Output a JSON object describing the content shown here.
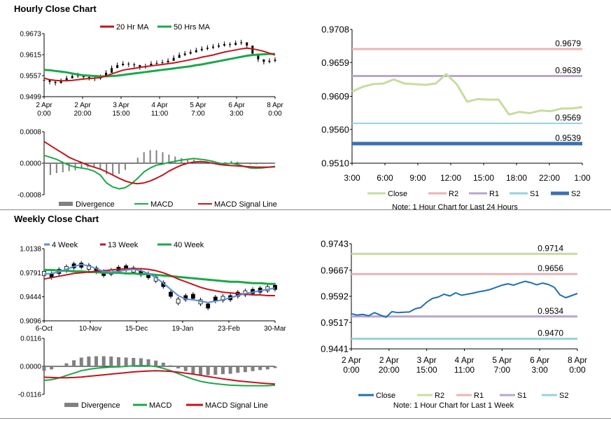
{
  "sections": {
    "hourly_title": "Hourly Close Chart",
    "weekly_title": "Weekly Close Chart"
  },
  "colors": {
    "ma20": "#c0161c",
    "ma50": "#1aa84a",
    "ma4": "#5b8ed6",
    "close_hourly": "#c8dc9e",
    "close_weekly": "#1f6fb2",
    "r2_hourly": "#e9b4b4",
    "r1_hourly": "#b9a5d0",
    "s1_hourly": "#97d1df",
    "s2_hourly": "#3e6faf",
    "r2_weekly": "#c8dc9e",
    "r1_weekly": "#e9b4b4",
    "s1_weekly": "#b9a5d0",
    "s2_weekly": "#97d1df",
    "divergence": "#808080"
  },
  "chart_data": [
    {
      "id": "hourly_price",
      "type": "line",
      "title": "",
      "legend": [
        "20 Hr MA",
        "50 Hrs MA"
      ],
      "yticks": [
        "0.9673",
        "0.9615",
        "0.9557",
        "0.9499"
      ],
      "ylim": [
        0.9499,
        0.9673
      ],
      "xticks": [
        [
          "2 Apr",
          "0:00"
        ],
        [
          "2 Apr",
          "20:00"
        ],
        [
          "3 Apr",
          "15:00"
        ],
        [
          "4 Apr",
          "11:00"
        ],
        [
          "5 Apr",
          "7:00"
        ],
        [
          "6 Apr",
          "3:00"
        ],
        [
          "8 Apr",
          "0:00"
        ]
      ],
      "series": [
        {
          "name": "Price",
          "values": [
            0.9545,
            0.954,
            0.9537,
            0.9542,
            0.955,
            0.9556,
            0.9558,
            0.9553,
            0.9551,
            0.9549,
            0.9553,
            0.9565,
            0.9578,
            0.9586,
            0.959,
            0.9588,
            0.9586,
            0.958,
            0.9583,
            0.959,
            0.9592,
            0.9594,
            0.9598,
            0.9606,
            0.9614,
            0.9618,
            0.9622,
            0.9627,
            0.9631,
            0.9634,
            0.9637,
            0.964,
            0.9644,
            0.9642,
            0.9647,
            0.9649,
            0.964,
            0.9618,
            0.9602,
            0.9595,
            0.9598,
            0.9601
          ]
        },
        {
          "name": "20 Hr MA",
          "values": [
            0.955,
            0.9546,
            0.9544,
            0.9543,
            0.9543,
            0.9544,
            0.9546,
            0.9548,
            0.9549,
            0.955,
            0.9552,
            0.9556,
            0.9562,
            0.9567,
            0.9572,
            0.9575,
            0.9577,
            0.958,
            0.9582,
            0.9584,
            0.9586,
            0.9588,
            0.959,
            0.9592,
            0.9595,
            0.9598,
            0.9601,
            0.9604,
            0.9608,
            0.9611,
            0.9614,
            0.9618,
            0.9622,
            0.9625,
            0.9628,
            0.9631,
            0.9633,
            0.9631,
            0.9628,
            0.9624,
            0.9619,
            0.9614
          ]
        },
        {
          "name": "50 Hrs MA",
          "values": [
            0.9573,
            0.9572,
            0.957,
            0.9568,
            0.9566,
            0.9563,
            0.956,
            0.9558,
            0.9557,
            0.9556,
            0.9555,
            0.9555,
            0.9556,
            0.9557,
            0.9559,
            0.9561,
            0.9563,
            0.9565,
            0.9567,
            0.9569,
            0.9571,
            0.9573,
            0.9575,
            0.9577,
            0.9579,
            0.9581,
            0.9583,
            0.9586,
            0.9588,
            0.9591,
            0.9594,
            0.9597,
            0.96,
            0.9603,
            0.9606,
            0.9609,
            0.9612,
            0.9614,
            0.9615,
            0.9616,
            0.9617,
            0.9617
          ]
        }
      ]
    },
    {
      "id": "hourly_macd",
      "type": "line",
      "legend": [
        "Divergence",
        "MACD",
        "MACD Signal Line"
      ],
      "yticks": [
        "0.0008",
        "0.0000",
        "-0.0008"
      ],
      "ylim": [
        -0.0008,
        0.0008
      ],
      "series": [
        {
          "name": "MACD",
          "values": [
            0.0002,
            0.00015,
            0.0001,
            2e-05,
            -5e-05,
            -0.0001,
            -0.00012,
            -0.00015,
            -0.0002,
            -0.0003,
            -0.0005,
            -0.0006,
            -0.00065,
            -0.00062,
            -0.00052,
            -0.00038,
            -0.00022,
            -0.00012,
            -5e-05,
            -2e-05,
            2e-05,
            5e-05,
            8e-05,
            0.0001,
            0.00012,
            0.0001,
            8e-05,
            5e-05,
            0.0,
            -2e-05,
            0.0,
            -3e-05,
            -8e-05,
            -0.00012,
            -0.00013,
            -0.00012,
            -0.0001,
            -8e-05
          ]
        },
        {
          "name": "MACD Signal Line",
          "values": [
            0.00055,
            0.00045,
            0.00035,
            0.00025,
            0.00015,
            8e-05,
            2e-05,
            -5e-05,
            -0.0001,
            -0.00015,
            -0.00022,
            -0.0003,
            -0.00038,
            -0.00045,
            -0.0005,
            -0.00052,
            -0.0005,
            -0.00045,
            -0.00038,
            -0.0003,
            -0.0002,
            -0.00012,
            -5e-05,
            0.0,
            3e-05,
            4e-05,
            3e-05,
            0.0,
            -3e-05,
            -5e-05,
            -6e-05,
            -7e-05,
            -8e-05,
            -9e-05,
            -0.0001,
            -0.0001,
            -0.0001,
            -9e-05
          ]
        }
      ]
    },
    {
      "id": "hourly_levels",
      "type": "line",
      "yticks": [
        "0.9708",
        "0.9659",
        "0.9609",
        "0.9560",
        "0.9510"
      ],
      "ylim": [
        0.951,
        0.9708
      ],
      "xticks": [
        "3:00",
        "6:00",
        "9:00",
        "12:00",
        "15:00",
        "18:00",
        "22:00",
        "1:00"
      ],
      "legend": [
        "Close",
        "R2",
        "R1",
        "S1",
        "S2"
      ],
      "note": "Note: 1 Hour Chart for Last 24 Hours",
      "levels": [
        {
          "name": "R2",
          "value": 0.9679,
          "label": "0.9679"
        },
        {
          "name": "R1",
          "value": 0.9639,
          "label": "0.9639"
        },
        {
          "name": "S1",
          "value": 0.9569,
          "label": "0.9569"
        },
        {
          "name": "S2",
          "value": 0.9539,
          "label": "0.9539"
        }
      ],
      "series": [
        {
          "name": "Close",
          "values": [
            0.9616,
            0.9623,
            0.9627,
            0.9628,
            0.9634,
            0.9628,
            0.9627,
            0.9626,
            0.9628,
            0.9642,
            0.9627,
            0.9601,
            0.9605,
            0.9604,
            0.9604,
            0.9582,
            0.9586,
            0.9584,
            0.9588,
            0.9587,
            0.9591,
            0.9591,
            0.9593
          ]
        }
      ]
    },
    {
      "id": "weekly_price",
      "type": "line",
      "legend": [
        "4 Week",
        "13 Week",
        "40 Week"
      ],
      "yticks": [
        "1.0138",
        "0.9791",
        "0.9444",
        "0.9096"
      ],
      "ylim": [
        0.9096,
        1.0138
      ],
      "xticks": [
        "6-Oct",
        "10-Nov",
        "15-Dec",
        "19-Jan",
        "23-Feb",
        "30-Mar"
      ],
      "series": [
        {
          "name": "Price",
          "values": [
            0.978,
            0.975,
            0.981,
            0.985,
            0.989,
            0.99,
            0.987,
            0.983,
            0.978,
            0.98,
            0.984,
            0.986,
            0.983,
            0.979,
            0.975,
            0.97,
            0.962,
            0.948,
            0.938,
            0.943,
            0.945,
            0.937,
            0.931,
            0.941,
            0.942,
            0.943,
            0.948,
            0.95,
            0.952,
            0.954,
            0.956,
            0.958
          ]
        },
        {
          "name": "4 Week",
          "values": [
            0.977,
            0.978,
            0.98,
            0.984,
            0.988,
            0.991,
            0.989,
            0.985,
            0.981,
            0.98,
            0.981,
            0.983,
            0.984,
            0.982,
            0.978,
            0.972,
            0.964,
            0.955,
            0.946,
            0.941,
            0.94,
            0.938,
            0.936,
            0.938,
            0.94,
            0.943,
            0.946,
            0.949,
            0.951,
            0.953,
            0.955,
            0.957
          ]
        },
        {
          "name": "13 Week",
          "values": [
            0.97,
            0.972,
            0.974,
            0.976,
            0.978,
            0.979,
            0.98,
            0.981,
            0.982,
            0.983,
            0.984,
            0.985,
            0.985,
            0.985,
            0.984,
            0.982,
            0.979,
            0.975,
            0.97,
            0.966,
            0.962,
            0.958,
            0.955,
            0.953,
            0.951,
            0.95,
            0.949,
            0.948,
            0.947,
            0.947,
            0.946,
            0.946
          ]
        },
        {
          "name": "40 Week",
          "values": [
            0.983,
            0.983,
            0.982,
            0.982,
            0.981,
            0.981,
            0.98,
            0.98,
            0.979,
            0.979,
            0.979,
            0.978,
            0.978,
            0.977,
            0.977,
            0.976,
            0.975,
            0.974,
            0.973,
            0.972,
            0.971,
            0.97,
            0.969,
            0.968,
            0.967,
            0.966,
            0.966,
            0.965,
            0.964,
            0.964,
            0.963,
            0.963
          ]
        }
      ]
    },
    {
      "id": "weekly_macd",
      "type": "line",
      "legend": [
        "Divergence",
        "MACD",
        "MACD Signal Line"
      ],
      "yticks": [
        "0.0116",
        "0.0000",
        "-0.0116"
      ],
      "ylim": [
        -0.0116,
        0.0116
      ],
      "series": [
        {
          "name": "MACD",
          "values": [
            -0.0058,
            -0.0055,
            -0.0048,
            -0.0038,
            -0.0028,
            -0.0018,
            -0.0012,
            -0.0008,
            -0.0005,
            -0.0003,
            -0.0002,
            0.0,
            0.0002,
            0.0003,
            0.0002,
            -0.0001,
            -0.0008,
            -0.0018,
            -0.003,
            -0.0042,
            -0.0053,
            -0.0062,
            -0.0068,
            -0.0072,
            -0.0075,
            -0.0078,
            -0.0079,
            -0.008,
            -0.008,
            -0.008,
            -0.008,
            -0.0078
          ]
        },
        {
          "name": "MACD Signal Line",
          "values": [
            -0.0045,
            -0.0046,
            -0.0047,
            -0.0047,
            -0.0046,
            -0.0044,
            -0.0041,
            -0.0038,
            -0.0035,
            -0.0032,
            -0.0029,
            -0.0026,
            -0.0023,
            -0.0021,
            -0.0019,
            -0.0018,
            -0.0019,
            -0.0021,
            -0.0024,
            -0.0028,
            -0.0032,
            -0.0037,
            -0.0042,
            -0.0047,
            -0.0052,
            -0.0056,
            -0.006,
            -0.0063,
            -0.0066,
            -0.0069,
            -0.0071,
            -0.0073
          ]
        }
      ]
    },
    {
      "id": "weekly_levels",
      "type": "line",
      "yticks": [
        "0.9743",
        "0.9667",
        "0.9592",
        "0.9517",
        "0.9441"
      ],
      "ylim": [
        0.9441,
        0.9743
      ],
      "xticks": [
        [
          "2 Apr",
          "0:00"
        ],
        [
          "2 Apr",
          "20:00"
        ],
        [
          "3 Apr",
          "15:00"
        ],
        [
          "4 Apr",
          "11:00"
        ],
        [
          "5 Apr",
          "7:00"
        ],
        [
          "6 Apr",
          "3:00"
        ],
        [
          "8 Apr",
          "0:00"
        ]
      ],
      "legend": [
        "Close",
        "R2",
        "R1",
        "S1",
        "S2"
      ],
      "note": "Note: 1 Hour Chart for Last 1 Week",
      "levels": [
        {
          "name": "R2",
          "value": 0.9714,
          "label": "0.9714"
        },
        {
          "name": "R1",
          "value": 0.9656,
          "label": "0.9656"
        },
        {
          "name": "S1",
          "value": 0.9534,
          "label": "0.9534"
        },
        {
          "name": "S2",
          "value": 0.947,
          "label": "0.9470"
        }
      ],
      "series": [
        {
          "name": "Close",
          "values": [
            0.9542,
            0.9538,
            0.954,
            0.9536,
            0.9545,
            0.9538,
            0.9532,
            0.9548,
            0.9545,
            0.9546,
            0.9547,
            0.9556,
            0.956,
            0.9575,
            0.9586,
            0.959,
            0.9598,
            0.9593,
            0.9602,
            0.9595,
            0.9598,
            0.9601,
            0.9605,
            0.9608,
            0.9612,
            0.9618,
            0.9624,
            0.9628,
            0.9624,
            0.963,
            0.9635,
            0.9631,
            0.9625,
            0.963,
            0.9626,
            0.9618,
            0.9596,
            0.9588,
            0.9594,
            0.96
          ]
        }
      ]
    }
  ]
}
